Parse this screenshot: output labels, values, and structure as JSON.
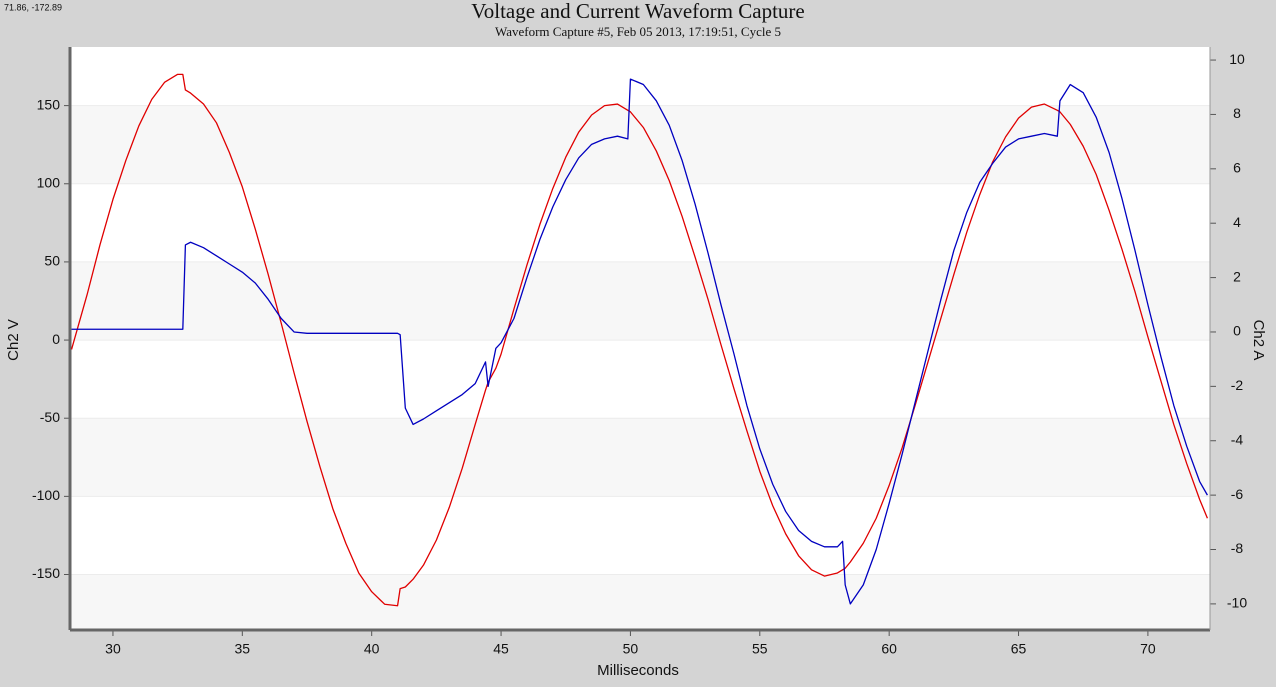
{
  "chart_data": {
    "type": "line",
    "cursor_readout": "71.86, -172.89",
    "title": "Voltage and Current Waveform Capture",
    "subtitle": "Waveform Capture #5, Feb 05 2013, 17:19:51,  Cycle 5",
    "x_label": "Milliseconds",
    "y_label": "Ch2 V",
    "y2_label": "Ch2 A",
    "xlim": [
      28.34,
      72.4
    ],
    "xticks": [
      30,
      35,
      40,
      45,
      50,
      55,
      60,
      65,
      70
    ],
    "ylim": [
      -185.5,
      187.5
    ],
    "yticks": [
      -150,
      -100,
      -50,
      0,
      50,
      100,
      150
    ],
    "y2lim": [
      -10.96,
      10.48
    ],
    "y2ticks": [
      -10,
      -8,
      -6,
      -4,
      -2,
      0,
      2,
      4,
      6,
      8,
      10
    ],
    "grid": true,
    "x": [
      28.4,
      29,
      29.5,
      30,
      30.5,
      31,
      31.5,
      32,
      32.5,
      32.7,
      32.8,
      33,
      33.5,
      34,
      34.5,
      35,
      35.5,
      36,
      36.5,
      37,
      37.5,
      38,
      38.5,
      39,
      39.5,
      40,
      40.5,
      41,
      41.1,
      41.3,
      41.6,
      42,
      42.5,
      43,
      43.5,
      44,
      44.4,
      44.5,
      44.8,
      45,
      45.5,
      46,
      46.5,
      47,
      47.5,
      48,
      48.5,
      49,
      49.5,
      49.9,
      50,
      50.5,
      51,
      51.5,
      52,
      52.5,
      53,
      53.5,
      54,
      54.5,
      55,
      55.5,
      56,
      56.5,
      57,
      57.5,
      58,
      58.2,
      58.3,
      58.5,
      59,
      59.5,
      60,
      60.5,
      61,
      61.5,
      62,
      62.5,
      63,
      63.5,
      64,
      64.5,
      65,
      65.5,
      66,
      66.5,
      66.6,
      67,
      67.5,
      68,
      68.5,
      69,
      69.5,
      70,
      70.5,
      71,
      71.5,
      72,
      72.3
    ],
    "series": [
      {
        "color": "#e00000",
        "axis": "y",
        "values": [
          -6,
          29,
          61,
          90,
          115,
          137,
          154,
          165,
          170,
          170,
          160,
          158,
          151,
          139,
          120,
          98,
          71,
          42,
          11,
          -21,
          -52,
          -81,
          -108,
          -130,
          -149,
          -161,
          -169,
          -170,
          -159,
          -158,
          -153,
          -144,
          -128,
          -107,
          -82,
          -54,
          -32,
          -27,
          -18,
          -9,
          20,
          48,
          74,
          97,
          117,
          133,
          144,
          150,
          151,
          147,
          146,
          136,
          121,
          102,
          79,
          53,
          26,
          -3,
          -31,
          -58,
          -84,
          -106,
          -124,
          -138,
          -147,
          -151,
          -149,
          -147,
          -146,
          -142,
          -130,
          -114,
          -93,
          -69,
          -42,
          -14,
          14,
          42,
          69,
          93,
          114,
          130,
          142,
          149,
          151,
          147,
          146,
          138,
          124,
          106,
          83,
          58,
          31,
          2,
          -26,
          -54,
          -79,
          -102,
          -114
        ]
      },
      {
        "color": "#0000c0",
        "axis": "y2",
        "values": [
          0.1,
          0.1,
          0.1,
          0.1,
          0.1,
          0.1,
          0.1,
          0.1,
          0.1,
          0.1,
          3.2,
          3.3,
          3.1,
          2.8,
          2.5,
          2.2,
          1.8,
          1.2,
          0.5,
          0,
          -0.05,
          -0.05,
          -0.05,
          -0.05,
          -0.05,
          -0.05,
          -0.05,
          -0.05,
          -0.1,
          -2.8,
          -3.4,
          -3.2,
          -2.9,
          -2.6,
          -2.3,
          -1.9,
          -1.1,
          -2.0,
          -0.6,
          -0.4,
          0.5,
          2.0,
          3.4,
          4.6,
          5.6,
          6.4,
          6.9,
          7.1,
          7.2,
          7.1,
          9.3,
          9.1,
          8.5,
          7.6,
          6.3,
          4.7,
          2.9,
          1.0,
          -0.8,
          -2.7,
          -4.3,
          -5.6,
          -6.6,
          -7.3,
          -7.7,
          -7.9,
          -7.9,
          -7.7,
          -9.3,
          -10,
          -9.3,
          -8.0,
          -6.3,
          -4.5,
          -2.6,
          -0.7,
          1.2,
          3.0,
          4.4,
          5.5,
          6.2,
          6.8,
          7.1,
          7.2,
          7.3,
          7.2,
          8.5,
          9.1,
          8.8,
          7.9,
          6.6,
          4.9,
          3.0,
          1.0,
          -0.9,
          -2.7,
          -4.2,
          -5.5,
          -6.0
        ]
      }
    ]
  }
}
